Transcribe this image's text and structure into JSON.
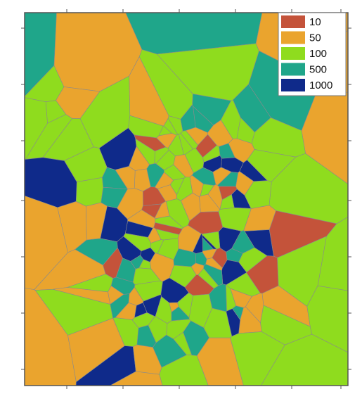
{
  "legend": {
    "items": [
      {
        "label": "10",
        "color": "#c4533a"
      },
      {
        "label": "50",
        "color": "#eaa42e"
      },
      {
        "label": "100",
        "color": "#8fdc1e"
      },
      {
        "label": "500",
        "color": "#1fa68a"
      },
      {
        "label": "1000",
        "color": "#0f2a8a"
      }
    ]
  }
}
